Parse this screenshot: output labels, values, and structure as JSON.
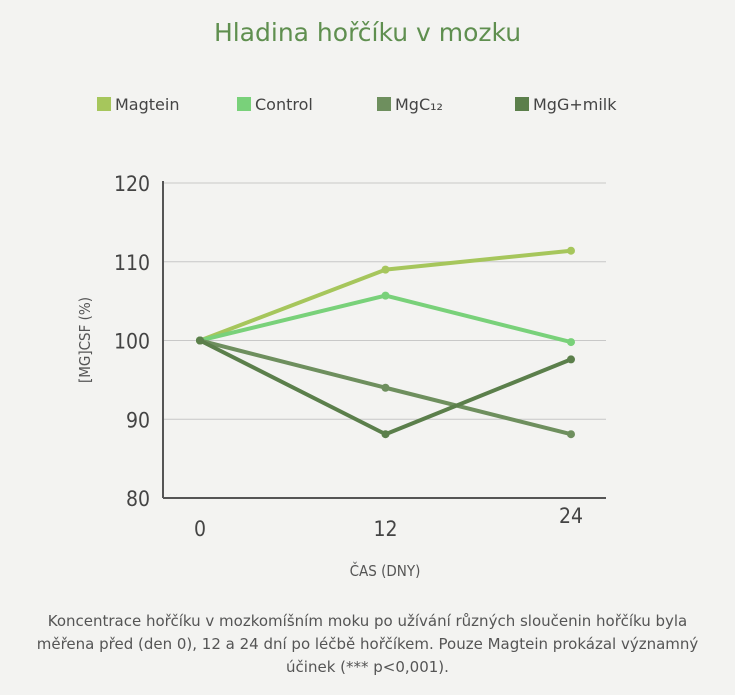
{
  "title": "Hladina hořčíku v mozku",
  "caption": "Koncentrace hořčíku v mozkomíšním moku po užívání různých sloučenin hořčíku byla měřena před (den 0), 12 a 24 dní po léčbě hořčíkem. Pouze Magtein prokázal významný účinek (*** p<0,001).",
  "chart_data": {
    "type": "line",
    "title": "Hladina hořčíku v mozku",
    "xlabel": "ČAS (DNY)",
    "ylabel": "[MG]CSF (%)",
    "x": [
      0,
      12,
      24
    ],
    "x_ticks": [
      "0",
      "12",
      "24"
    ],
    "ylim": [
      80,
      120
    ],
    "y_ticks": [
      "80",
      "90",
      "100",
      "110",
      "120"
    ],
    "grid": true,
    "legend_position": "top",
    "series": [
      {
        "name": "Magtein",
        "color": "#a6c65c",
        "values": [
          100,
          109,
          111.4
        ]
      },
      {
        "name": "Control",
        "color": "#79d17a",
        "values": [
          100,
          105.7,
          99.8
        ]
      },
      {
        "name": "MgC₁₂",
        "color": "#6e8f5e",
        "values": [
          100,
          94,
          88.1
        ]
      },
      {
        "name": "MgG+milk",
        "color": "#5b7f4b",
        "values": [
          100,
          88.1,
          97.6
        ]
      }
    ]
  }
}
